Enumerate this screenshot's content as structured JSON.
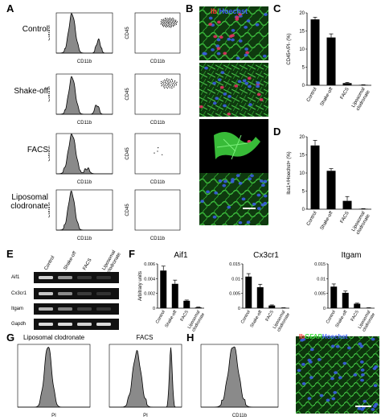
{
  "panels": {
    "A": {
      "letter": "A",
      "rows": [
        "Control",
        "Shake-off",
        "FACS",
        "Liposomal\nclodronate"
      ],
      "hist_ylabel": "Control",
      "hist_xlabel": "CD11b",
      "dot_ylabel": "CD45",
      "dot_xlabel": "CD11b"
    },
    "B": {
      "letter": "B",
      "legend_red": "Ib",
      "legend_green": "/",
      "legend_blue": "Hoechst"
    },
    "C": {
      "letter": "C"
    },
    "D": {
      "letter": "D"
    },
    "E": {
      "letter": "E",
      "lanes": [
        "Control",
        "Shake-off",
        "FACS",
        "Liposomal clodronate"
      ],
      "genes": [
        "Aif1",
        "Cx3cr1",
        "Itgam",
        "Gapdh"
      ]
    },
    "F": {
      "letter": "F"
    },
    "G": {
      "letter": "G",
      "title_left": "Liposomal clodronate",
      "title_right": "FACS",
      "xlabel": "PI"
    },
    "H": {
      "letter": "H",
      "xlabel": "CD11b",
      "legend_red": "Ib",
      "legend_green": "GFAP",
      "legend_blue": "Hoechst"
    }
  },
  "chart_data": [
    {
      "type": "bar",
      "panel": "C",
      "categories": [
        "Control",
        "Shake-off",
        "FACS",
        "Liposomal clodronate"
      ],
      "values": [
        18.2,
        13.2,
        0.6,
        0.1
      ],
      "errors": [
        0.6,
        1.0,
        0.2,
        0.05
      ],
      "ylabel": "CD45+/PI- (%)",
      "ylim": [
        0,
        20
      ],
      "yticks": [
        0,
        5,
        10,
        15,
        20
      ]
    },
    {
      "type": "bar",
      "panel": "D",
      "categories": [
        "Control",
        "Shake-off",
        "FACS",
        "Liposomal clodronate"
      ],
      "values": [
        17.6,
        10.6,
        2.3,
        0.1
      ],
      "errors": [
        1.4,
        0.6,
        1.2,
        0.05
      ],
      "ylabel": "Iba1+/Hoechst+ (%)",
      "ylim": [
        0,
        20
      ],
      "yticks": [
        0,
        5,
        10,
        15,
        20
      ]
    },
    {
      "type": "bar",
      "panel": "F1",
      "title": "Aif1",
      "categories": [
        "Control",
        "Shake-off",
        "FACS",
        "Liposomal clodronate"
      ],
      "values": [
        0.0051,
        0.0033,
        0.001,
        0.0001
      ],
      "errors": [
        0.0006,
        0.0005,
        0.0001,
        5e-05
      ],
      "ylabel": "Arbitrary units",
      "ylim": [
        0,
        0.006
      ],
      "yticks": [
        "0",
        "0.002",
        "0.004",
        "0.006"
      ]
    },
    {
      "type": "bar",
      "panel": "F2",
      "title": "Cx3cr1",
      "categories": [
        "Control",
        "Shake-off",
        "FACS",
        "Liposomal clodronate"
      ],
      "values": [
        0.0107,
        0.0071,
        0.0009,
        0.0001
      ],
      "errors": [
        0.001,
        0.001,
        0.0002,
        5e-05
      ],
      "ylim": [
        0,
        0.015
      ],
      "yticks": [
        "0",
        "0.005",
        "0.01",
        "0.015"
      ]
    },
    {
      "type": "bar",
      "panel": "F3",
      "title": "Itgam",
      "categories": [
        "Control",
        "Shake-off",
        "FACS",
        "Liposomal clodronate"
      ],
      "values": [
        0.0073,
        0.0052,
        0.0015,
        0.0001
      ],
      "errors": [
        0.0009,
        0.0006,
        0.0002,
        5e-05
      ],
      "ylim": [
        0,
        0.015
      ],
      "yticks": [
        "0",
        "0.005",
        "0.01",
        "0.015"
      ]
    }
  ]
}
